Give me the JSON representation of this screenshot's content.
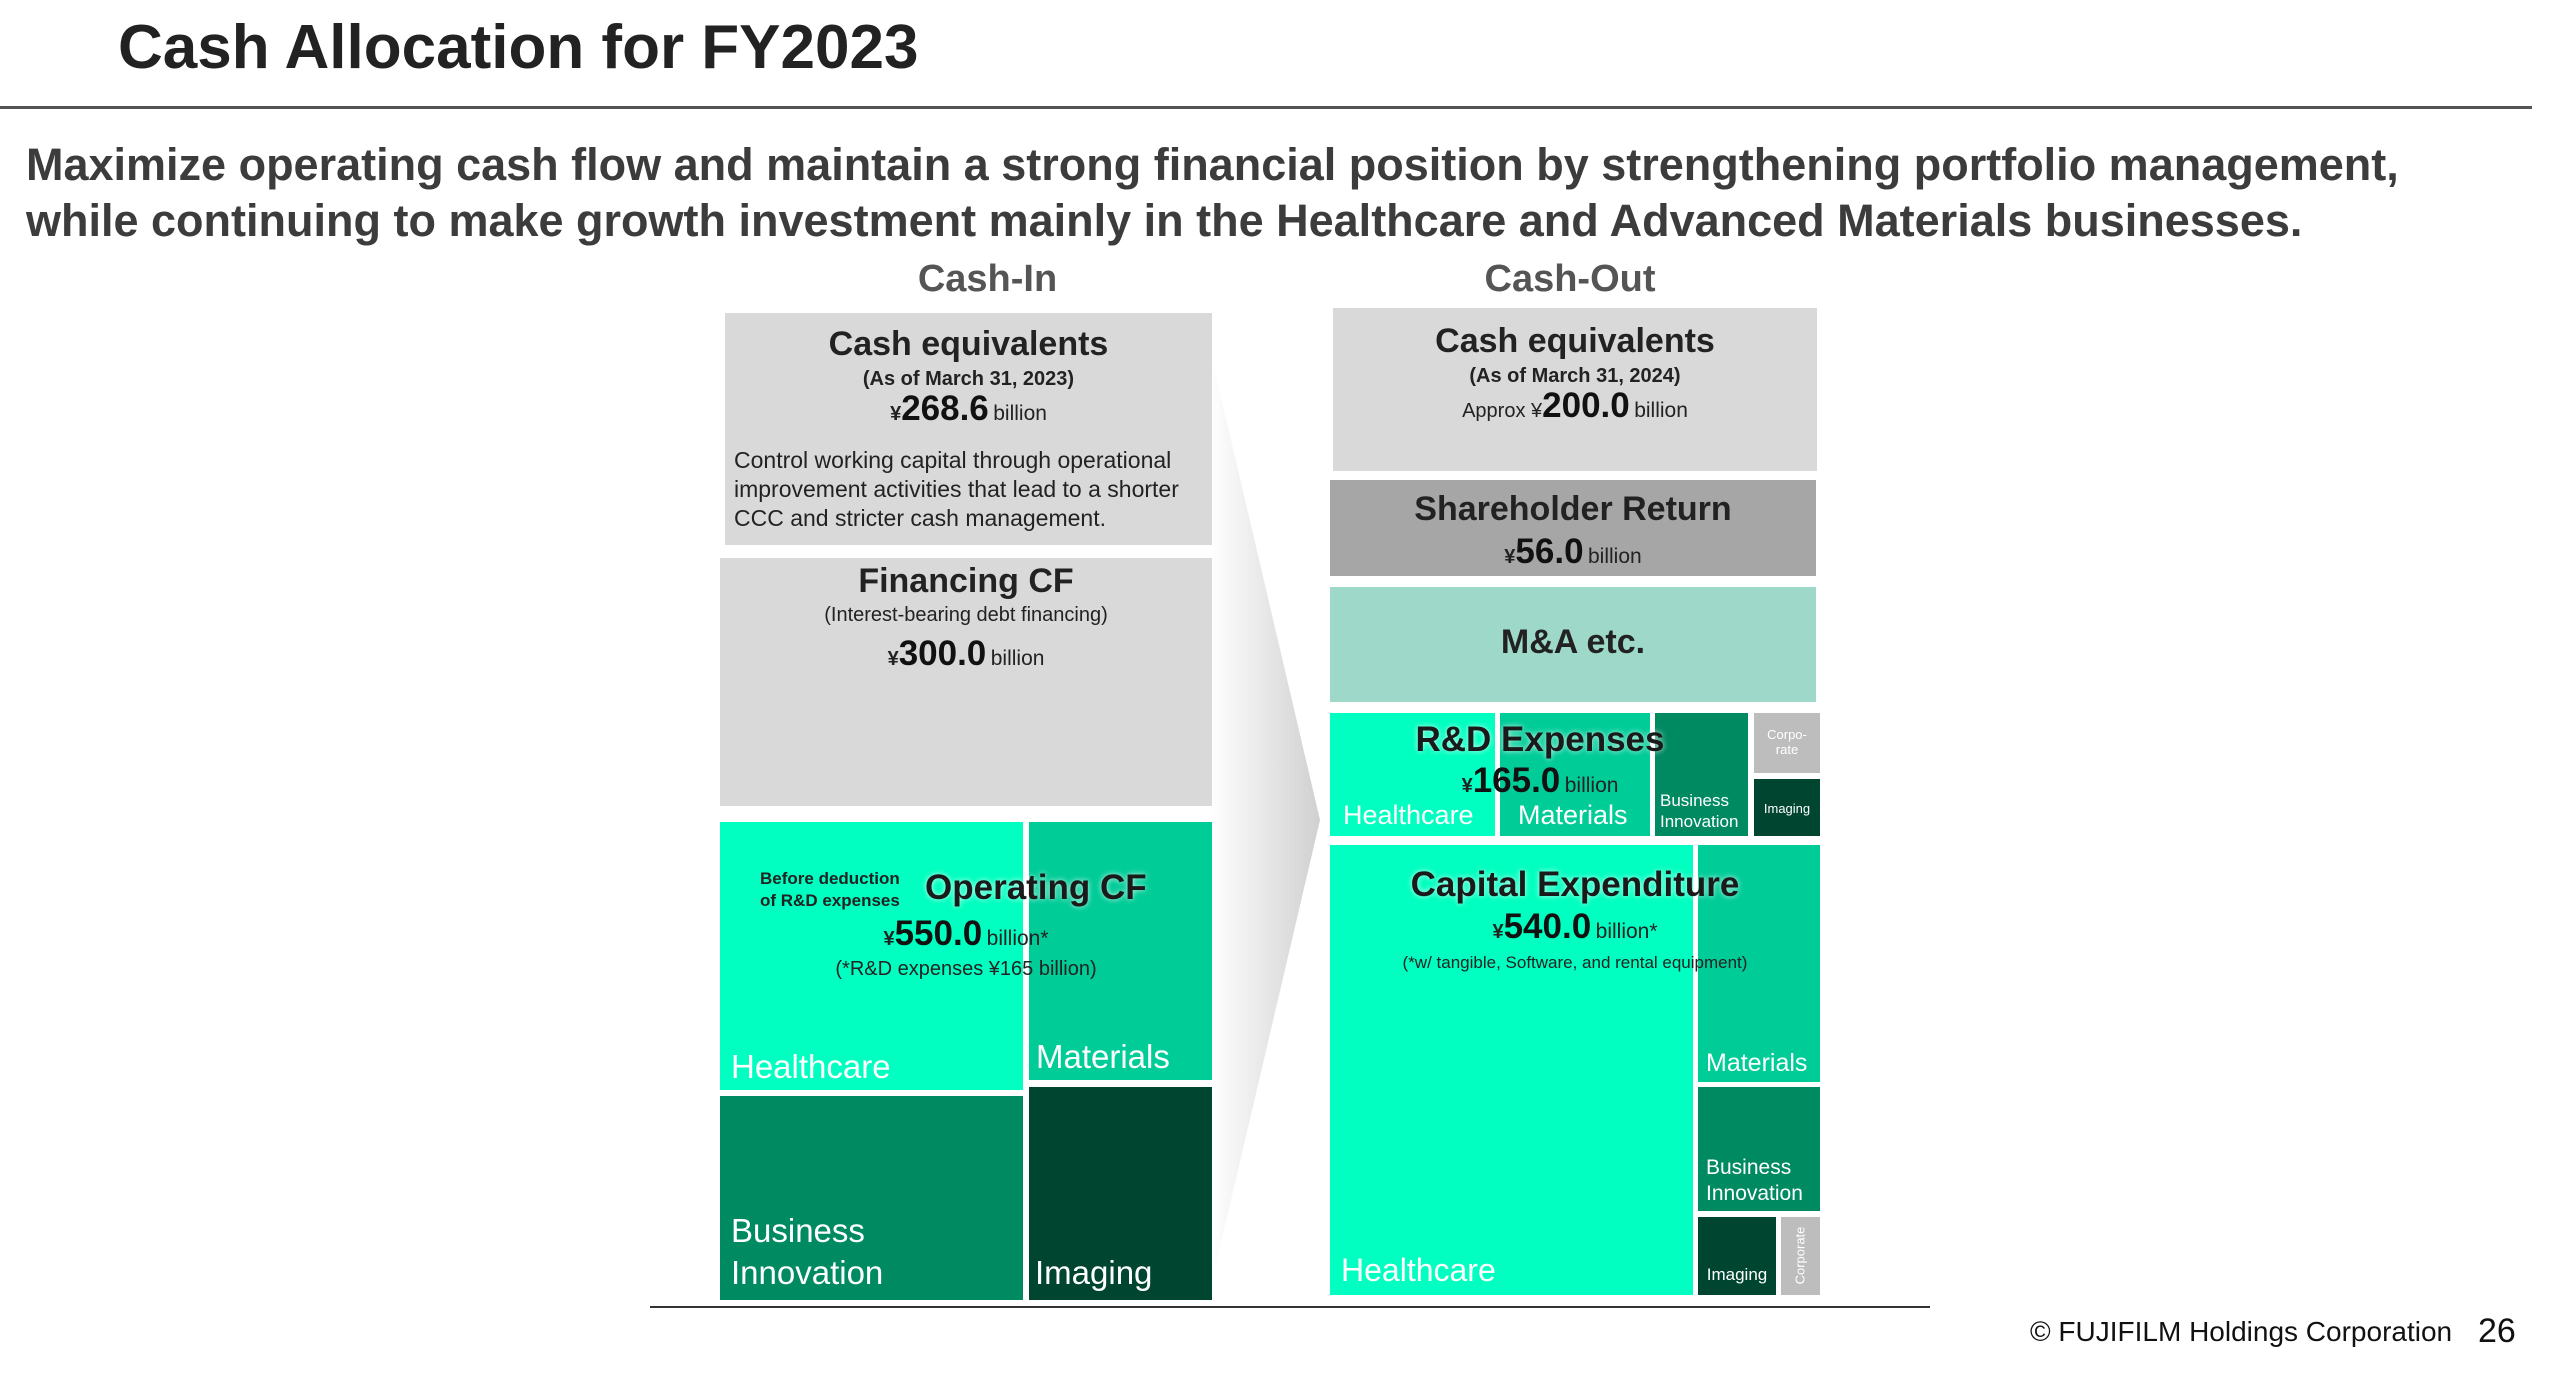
{
  "page": {
    "title": "Cash Allocation for FY2023",
    "subtitle_line1": "Maximize operating cash flow and maintain a strong financial position by strengthening portfolio management,",
    "subtitle_line2": "while continuing to make growth investment mainly in the Healthcare and Advanced Materials businesses.",
    "footer_copyright": "© FUJIFILM Holdings Corporation",
    "page_number": "26"
  },
  "cash_in": {
    "heading": "Cash-In",
    "cash_equivalents": {
      "title": "Cash equivalents",
      "date": "(As of March 31, 2023)",
      "currency": "¥",
      "value": "268.6",
      "unit": "billion",
      "note_line1": "Control working capital through operational",
      "note_line2": "improvement activities that lead to a shorter",
      "note_line3": "CCC and stricter cash management."
    },
    "financing_cf": {
      "title": "Financing CF",
      "subtitle": "(Interest-bearing debt financing)",
      "currency": "¥",
      "value": "300.0",
      "unit": "billion"
    },
    "operating_cf": {
      "title": "Operating CF",
      "pre_note_line1": "Before deduction",
      "pre_note_line2": "of R&D expenses",
      "currency": "¥",
      "value": "550.0",
      "unit": "billion*",
      "note": "(*R&D expenses ¥165 billion)",
      "segments": {
        "healthcare": "Healthcare",
        "materials": "Materials",
        "business_innovation_line1": "Business",
        "business_innovation_line2": "Innovation",
        "imaging": "Imaging"
      }
    }
  },
  "cash_out": {
    "heading": "Cash-Out",
    "cash_equivalents": {
      "title": "Cash equivalents",
      "date": "(As of March 31, 2024)",
      "prefix": "Approx ¥",
      "value": "200.0",
      "unit": "billion"
    },
    "shareholder_return": {
      "title": "Shareholder Return",
      "currency": "¥",
      "value": "56.0",
      "unit": "billion"
    },
    "ma": {
      "title": "M&A etc."
    },
    "rd_expenses": {
      "title": "R&D Expenses",
      "currency": "¥",
      "value": "165.0",
      "unit": "billion",
      "segments": {
        "healthcare": "Healthcare",
        "materials": "Materials",
        "business_innovation_line1": "Business",
        "business_innovation_line2": "Innovation",
        "corporate_line1": "Corpo-",
        "corporate_line2": "rate",
        "imaging": "Imaging"
      }
    },
    "capital_expenditure": {
      "title": "Capital Expenditure",
      "currency": "¥",
      "value": "540.0",
      "unit": "billion*",
      "note": "(*w/ tangible, Software, and rental equipment)",
      "segments": {
        "healthcare": "Healthcare",
        "materials": "Materials",
        "business_innovation_line1": "Business",
        "business_innovation_line2": "Innovation",
        "imaging": "Imaging",
        "corporate": "Corporate"
      }
    }
  },
  "colors": {
    "gray": "#d9d9d9",
    "dark_gray": "#a6a6a6",
    "mint": "#9ed8c8",
    "healthcare": "#00ffc0",
    "materials": "#00cc98",
    "business_innovation": "#008a62",
    "imaging": "#00452f",
    "corporate": "#bdbdbd"
  }
}
